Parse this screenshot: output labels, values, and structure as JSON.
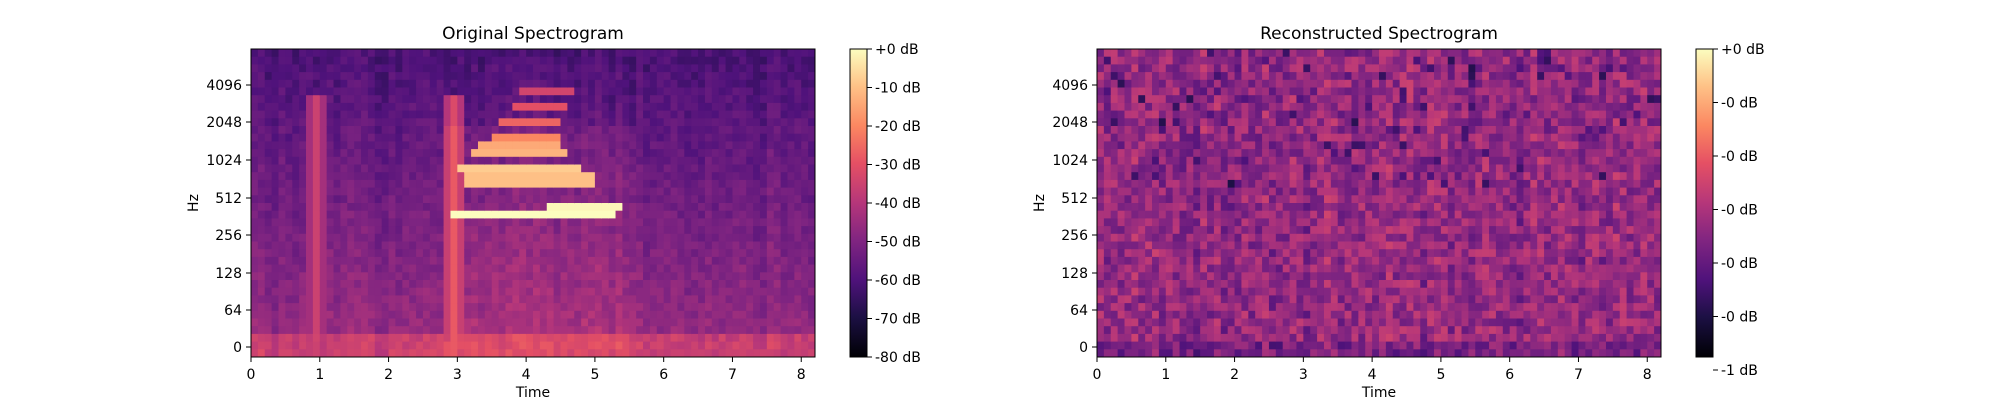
{
  "chart_data": [
    {
      "type": "heatmap",
      "title": "Original Spectrogram",
      "xlabel": "Time",
      "ylabel": "Hz",
      "xlim": [
        0,
        8.2
      ],
      "x_ticks": [
        0,
        1,
        2,
        3,
        4,
        5,
        6,
        7,
        8
      ],
      "y_tick_labels": [
        "0",
        "64",
        "128",
        "256",
        "512",
        "1024",
        "2048",
        "4096"
      ],
      "colorbar": {
        "tick_labels": [
          "+0 dB",
          "-10 dB",
          "-20 dB",
          "-30 dB",
          "-40 dB",
          "-50 dB",
          "-60 dB",
          "-70 dB",
          "-80 dB"
        ],
        "range_db": [
          -80,
          0
        ]
      },
      "colormap": "magma",
      "features": {
        "harmonics": [
          {
            "y_tick": 3.45,
            "t_start": 2.85,
            "t_end": 5.3,
            "level_db": -3
          },
          {
            "y_tick": 3.62,
            "t_start": 4.3,
            "t_end": 5.4,
            "level_db": -5
          },
          {
            "y_tick": 4.35,
            "t_start": 3.1,
            "t_end": 5.0,
            "level_db": -14
          },
          {
            "y_tick": 4.75,
            "t_start": 3.0,
            "t_end": 4.8,
            "level_db": -12
          },
          {
            "y_tick": 5.1,
            "t_start": 3.2,
            "t_end": 4.6,
            "level_db": -16
          },
          {
            "y_tick": 5.3,
            "t_start": 3.3,
            "t_end": 4.5,
            "level_db": -18
          },
          {
            "y_tick": 5.55,
            "t_start": 3.5,
            "t_end": 4.5,
            "level_db": -24
          },
          {
            "y_tick": 5.9,
            "t_start": 3.6,
            "t_end": 4.5,
            "level_db": -26
          },
          {
            "y_tick": 6.3,
            "t_start": 3.8,
            "t_end": 4.6,
            "level_db": -30
          },
          {
            "y_tick": 6.7,
            "t_start": 3.9,
            "t_end": 4.7,
            "level_db": -34
          }
        ],
        "bursts": [
          {
            "t": 0.95,
            "level_db": -30
          },
          {
            "t": 2.95,
            "level_db": -22
          }
        ]
      }
    },
    {
      "type": "heatmap",
      "title": "Reconstructed Spectrogram",
      "xlabel": "Time",
      "ylabel": "Hz",
      "xlim": [
        0,
        8.2
      ],
      "x_ticks": [
        0,
        1,
        2,
        3,
        4,
        5,
        6,
        7,
        8
      ],
      "y_tick_labels": [
        "0",
        "64",
        "128",
        "256",
        "512",
        "1024",
        "2048",
        "4096"
      ],
      "colorbar": {
        "tick_labels": [
          "+0 dB",
          "-0 dB",
          "-0 dB",
          "-0 dB",
          "-0 dB",
          "-0 dB",
          "-1 dB"
        ],
        "range_db": [
          -1.5,
          0
        ]
      },
      "colormap": "magma"
    }
  ]
}
